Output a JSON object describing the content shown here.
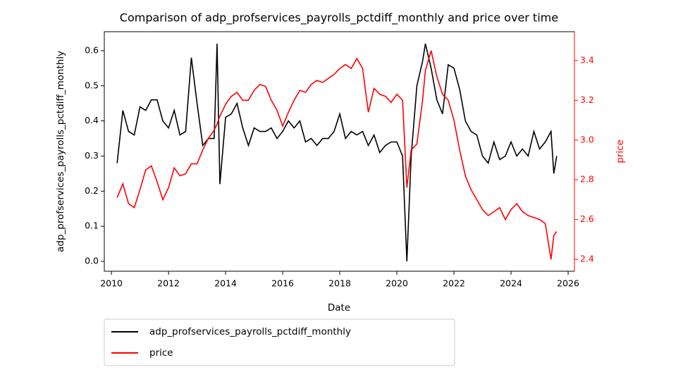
{
  "chart_data": {
    "type": "line",
    "title": "Comparison of adp_profservices_payrolls_pctdiff_monthly and price over time",
    "x_label": "Date",
    "y_label": "adp_profservices_payrolls_pctdiff_monthly",
    "y2_label": "price",
    "y2_color": "#ff0000",
    "x": [
      2010.2,
      2010.4,
      2010.6,
      2010.8,
      2011.0,
      2011.2,
      2011.4,
      2011.6,
      2011.8,
      2012.0,
      2012.2,
      2012.4,
      2012.6,
      2012.8,
      2013.0,
      2013.2,
      2013.4,
      2013.6,
      2013.7,
      2013.8,
      2014.0,
      2014.2,
      2014.4,
      2014.6,
      2014.8,
      2015.0,
      2015.2,
      2015.4,
      2015.6,
      2015.8,
      2016.0,
      2016.2,
      2016.4,
      2016.6,
      2016.8,
      2017.0,
      2017.2,
      2017.4,
      2017.6,
      2017.8,
      2018.0,
      2018.2,
      2018.4,
      2018.6,
      2018.8,
      2019.0,
      2019.2,
      2019.4,
      2019.6,
      2019.8,
      2020.0,
      2020.2,
      2020.35,
      2020.5,
      2020.7,
      2020.9,
      2021.0,
      2021.2,
      2021.4,
      2021.6,
      2021.8,
      2022.0,
      2022.2,
      2022.4,
      2022.6,
      2022.8,
      2023.0,
      2023.2,
      2023.4,
      2023.6,
      2023.8,
      2024.0,
      2024.2,
      2024.4,
      2024.6,
      2024.8,
      2025.0,
      2025.2,
      2025.4,
      2025.5,
      2025.6
    ],
    "series": [
      {
        "name": "adp_profservices_payrolls_pctdiff_monthly",
        "color": "#000000",
        "axis": "y",
        "values": [
          0.28,
          0.43,
          0.37,
          0.36,
          0.44,
          0.43,
          0.46,
          0.46,
          0.4,
          0.38,
          0.43,
          0.36,
          0.37,
          0.58,
          0.45,
          0.33,
          0.35,
          0.35,
          0.62,
          0.22,
          0.41,
          0.42,
          0.45,
          0.38,
          0.33,
          0.38,
          0.37,
          0.37,
          0.38,
          0.35,
          0.37,
          0.4,
          0.38,
          0.4,
          0.34,
          0.35,
          0.33,
          0.35,
          0.35,
          0.37,
          0.42,
          0.35,
          0.37,
          0.36,
          0.37,
          0.33,
          0.36,
          0.31,
          0.33,
          0.34,
          0.34,
          0.3,
          0.0,
          0.3,
          0.5,
          0.57,
          0.62,
          0.55,
          0.46,
          0.42,
          0.56,
          0.55,
          0.49,
          0.4,
          0.37,
          0.36,
          0.3,
          0.28,
          0.34,
          0.29,
          0.3,
          0.34,
          0.3,
          0.32,
          0.3,
          0.37,
          0.32,
          0.34,
          0.37,
          0.25,
          0.3
        ]
      },
      {
        "name": "price",
        "color": "#ff0000",
        "axis": "y2",
        "values": [
          2.71,
          2.78,
          2.68,
          2.66,
          2.75,
          2.85,
          2.87,
          2.79,
          2.7,
          2.76,
          2.86,
          2.82,
          2.83,
          2.88,
          2.88,
          2.95,
          3.01,
          3.05,
          3.08,
          3.12,
          3.18,
          3.22,
          3.24,
          3.2,
          3.2,
          3.25,
          3.28,
          3.27,
          3.2,
          3.15,
          3.07,
          3.14,
          3.2,
          3.25,
          3.24,
          3.28,
          3.3,
          3.29,
          3.31,
          3.33,
          3.36,
          3.38,
          3.36,
          3.41,
          3.36,
          3.14,
          3.26,
          3.23,
          3.22,
          3.19,
          3.23,
          3.2,
          2.76,
          2.95,
          2.98,
          3.2,
          3.35,
          3.45,
          3.32,
          3.23,
          3.2,
          3.1,
          2.95,
          2.82,
          2.75,
          2.7,
          2.65,
          2.62,
          2.64,
          2.66,
          2.6,
          2.65,
          2.68,
          2.64,
          2.62,
          2.61,
          2.6,
          2.58,
          2.4,
          2.52,
          2.54
        ]
      }
    ],
    "xlim": [
      2009.75,
      2026.22
    ],
    "xticks": [
      2010,
      2012,
      2014,
      2016,
      2018,
      2020,
      2022,
      2024,
      2026
    ],
    "ylim": [
      -0.028,
      0.654
    ],
    "yticks": [
      {
        "value": 0,
        "label": "0.0"
      },
      0.1,
      0.2,
      0.3,
      0.4,
      0.5,
      0.6
    ],
    "y2lim": [
      2.34,
      3.545
    ],
    "y2ticks": [
      2.4,
      2.6,
      2.8,
      {
        "value": 3,
        "label": "3.0"
      },
      3.2,
      3.4
    ],
    "legend": "below"
  }
}
